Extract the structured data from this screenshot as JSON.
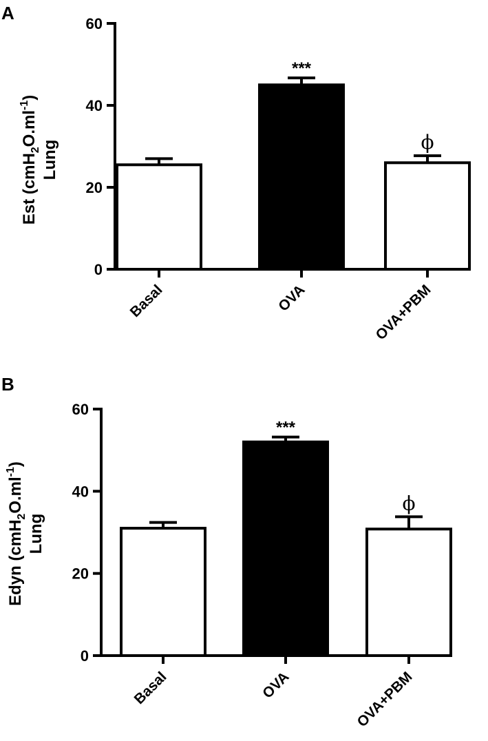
{
  "chart_data": [
    {
      "type": "bar",
      "panel": "A",
      "categories": [
        "Basal",
        "OVA",
        "OVA+PBM"
      ],
      "values": [
        25.5,
        45,
        26
      ],
      "errors": [
        1.5,
        1.7,
        1.7
      ],
      "bar_fills": [
        "#ffffff",
        "#000000",
        "#ffffff"
      ],
      "annotations": [
        "",
        "***",
        "ϕ"
      ],
      "ylabel": {
        "line1_pre": "Est (cmH",
        "line1_sub": "2",
        "line1_mid": "O.ml",
        "line1_sup": "-1",
        "line1_post": ")",
        "line2": "Lung"
      },
      "ylim": [
        0,
        60
      ],
      "yticks": [
        0,
        20,
        40,
        60
      ],
      "grid": false
    },
    {
      "type": "bar",
      "panel": "B",
      "categories": [
        "Basal",
        "OVA",
        "OVA+PBM"
      ],
      "values": [
        31,
        52,
        30.8
      ],
      "errors": [
        1.4,
        1.2,
        3
      ],
      "bar_fills": [
        "#ffffff",
        "#000000",
        "#ffffff"
      ],
      "annotations": [
        "",
        "***",
        "ϕ"
      ],
      "ylabel": {
        "line1_pre": "Edyn (cmH",
        "line1_sub": "2",
        "line1_mid": "O.ml",
        "line1_sup": "-1",
        "line1_post": ")",
        "line2": "Lung"
      },
      "ylim": [
        0,
        60
      ],
      "yticks": [
        0,
        20,
        40,
        60
      ],
      "grid": false
    }
  ]
}
